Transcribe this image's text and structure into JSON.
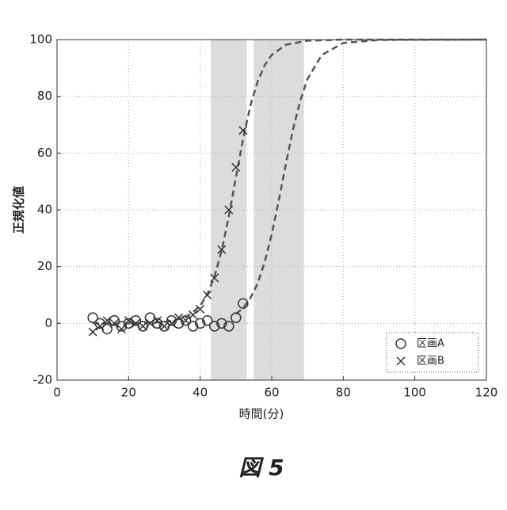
{
  "chart_data": {
    "type": "scatter",
    "caption": "図 5",
    "xlabel": "時間(分)",
    "ylabel": "正規化値",
    "xlim": [
      0,
      120
    ],
    "xticks": [
      0,
      20,
      40,
      60,
      80,
      100,
      120
    ],
    "ylim": [
      -20,
      100
    ],
    "yticks": [
      -20,
      0,
      20,
      40,
      60,
      80,
      100
    ],
    "grid": true,
    "legend": "lower right",
    "shaded_regions": [
      [
        43,
        53
      ],
      [
        55,
        69
      ]
    ],
    "series": [
      {
        "name": "区画A",
        "marker": "circle",
        "color": "#333333",
        "x": [
          10,
          12,
          14,
          16,
          18,
          20,
          22,
          24,
          26,
          28,
          30,
          32,
          34,
          36,
          38,
          40,
          42,
          44,
          46,
          48,
          50,
          52
        ],
        "values": [
          2,
          0,
          -2,
          1,
          -1,
          0,
          1,
          -1,
          2,
          0,
          -1,
          1,
          0,
          1,
          -1,
          0,
          1,
          -1,
          0,
          -1,
          2,
          7
        ],
        "fit_x": [
          50,
          52,
          54,
          56,
          58,
          60,
          62,
          64,
          66,
          68,
          70,
          74,
          80,
          90,
          120
        ],
        "fit_values": [
          3.3,
          5.4,
          8.8,
          13.9,
          21.4,
          31.4,
          43.5,
          56.5,
          68.6,
          78.6,
          86.1,
          94.6,
          98.8,
          99.9,
          100
        ]
      },
      {
        "name": "区画B",
        "marker": "x",
        "color": "#333333",
        "x": [
          10,
          12,
          14,
          16,
          18,
          20,
          22,
          24,
          26,
          28,
          30,
          32,
          34,
          36,
          38,
          40,
          42,
          44,
          46,
          48,
          50,
          52
        ],
        "values": [
          -3,
          -1,
          1,
          0,
          -2,
          1,
          0,
          -1,
          0,
          1,
          -1,
          0,
          2,
          1,
          3,
          5,
          10,
          16,
          26,
          40,
          55,
          68
        ],
        "fit_x": [
          10,
          20,
          30,
          36,
          40,
          42,
          44,
          46,
          48,
          50,
          52,
          54,
          56,
          58,
          60,
          64,
          70,
          80,
          120
        ],
        "fit_values": [
          0,
          0,
          0.4,
          2.1,
          6.1,
          10.2,
          16.5,
          25.6,
          37.7,
          51.5,
          65,
          76.5,
          85,
          90.9,
          94.6,
          98.2,
          99.6,
          100,
          100
        ]
      }
    ]
  }
}
